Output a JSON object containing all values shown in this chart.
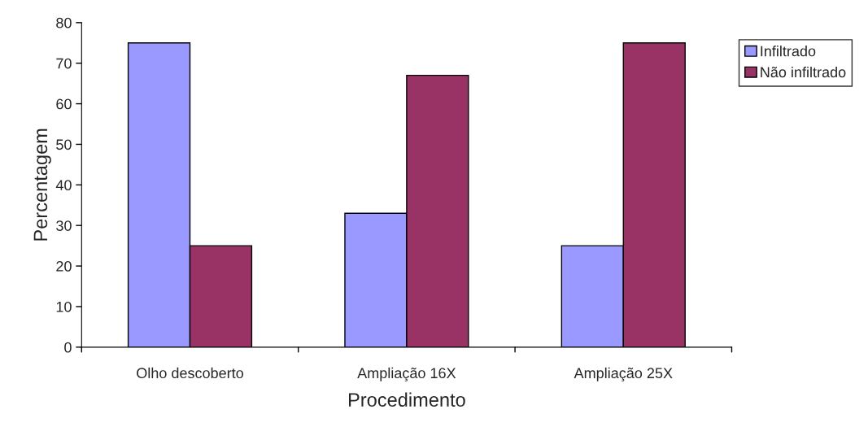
{
  "chart_data": {
    "type": "bar",
    "xlabel": "Procedimento",
    "ylabel": "Percentagem",
    "categories": [
      "Olho descoberto",
      "Ampliação 16X",
      "Ampliação 25X"
    ],
    "series": [
      {
        "name": "Infiltrado",
        "color": "#9999ff",
        "values": [
          75,
          33,
          25
        ]
      },
      {
        "name": "Não infiltrado",
        "color": "#993366",
        "values": [
          25,
          67,
          75
        ]
      }
    ],
    "ylim": [
      0,
      80
    ],
    "yticks": [
      0,
      10,
      20,
      30,
      40,
      50,
      60,
      70,
      80
    ],
    "grid": false,
    "legend": "top right"
  }
}
